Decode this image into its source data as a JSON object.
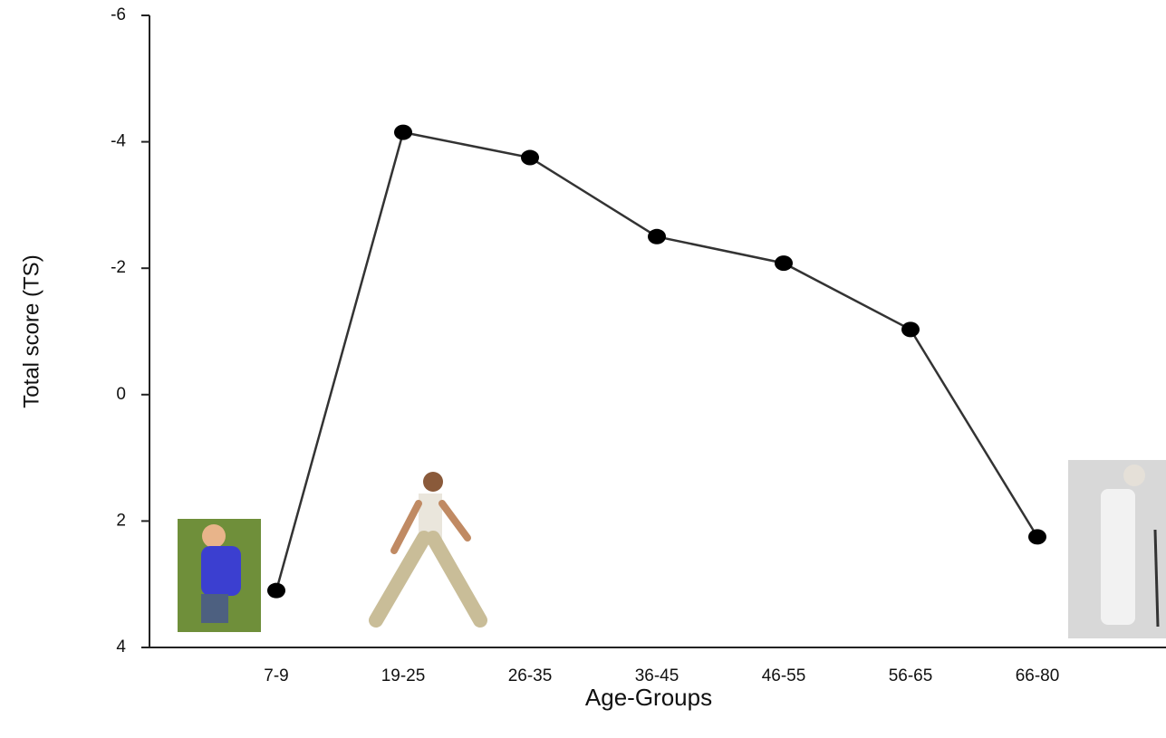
{
  "chart_data": {
    "type": "line",
    "y_label": "Total score (TS)",
    "x_label": "Age-Groups",
    "categories": [
      "7-9",
      "19-25",
      "26-35",
      "36-45",
      "46-55",
      "56-65",
      "66-80"
    ],
    "values": [
      3.1,
      -4.15,
      -3.75,
      -2.5,
      -2.08,
      -1.03,
      2.25
    ],
    "color": "#333333",
    "ylim": [
      4,
      -6
    ],
    "yticks": [
      -6,
      -4,
      -2,
      0,
      2,
      4
    ]
  }
}
